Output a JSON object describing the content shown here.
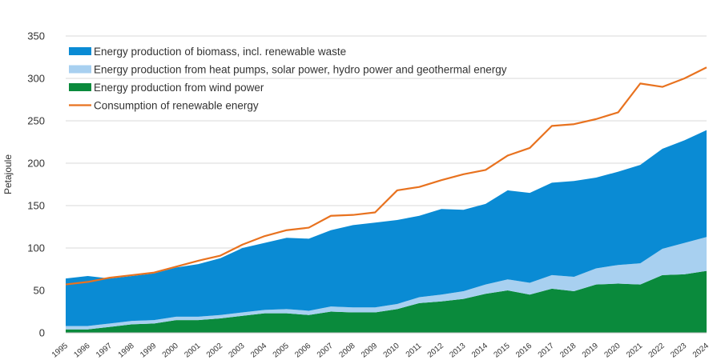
{
  "chart_data": {
    "type": "area",
    "ylabel": "Petajoule",
    "xlabel": "",
    "ylim": [
      0,
      350
    ],
    "yticks": [
      "0",
      "50",
      "100",
      "150",
      "200",
      "250",
      "300",
      "350"
    ],
    "categories": [
      "1995",
      "1996",
      "1997",
      "1998",
      "1999",
      "2000",
      "2001",
      "2002",
      "2003",
      "2004",
      "2005",
      "2006",
      "2007",
      "2008",
      "2009",
      "2010",
      "2011",
      "2012",
      "2013",
      "2014",
      "2015",
      "2016",
      "2017",
      "2018",
      "2019",
      "2020",
      "2021",
      "2022",
      "2023",
      "2024"
    ],
    "grid": "horizontal",
    "legend": "top-left",
    "stacked_series": [
      {
        "name": "Energy production from wind power",
        "color": "#0a8a3c",
        "values": [
          4,
          4,
          7,
          10,
          11,
          15,
          15,
          17,
          20,
          23,
          23,
          21,
          25,
          24,
          24,
          28,
          35,
          37,
          40,
          46,
          50,
          45,
          52,
          49,
          57,
          58,
          57,
          68,
          69,
          73
        ]
      },
      {
        "name": "Energy production from heat pumps, solar power, hydro power and geothermal energy",
        "color": "#a8d0f0",
        "values": [
          4,
          4,
          4,
          4,
          4,
          4,
          4,
          4,
          4,
          4,
          5,
          5,
          6,
          6,
          6,
          6,
          7,
          8,
          9,
          11,
          13,
          14,
          16,
          17,
          19,
          22,
          25,
          31,
          37,
          40
        ]
      },
      {
        "name": "Energy production of biomass, incl. renewable waste",
        "color": "#0a8bd4",
        "values": [
          56,
          59,
          53,
          53,
          55,
          58,
          62,
          67,
          76,
          79,
          84,
          85,
          90,
          97,
          100,
          99,
          96,
          101,
          96,
          95,
          105,
          106,
          109,
          113,
          107,
          110,
          116,
          118,
          121,
          126
        ]
      }
    ],
    "line_series": [
      {
        "name": "Consumption of renewable energy",
        "color": "#e8721f",
        "values": [
          57,
          60,
          65,
          68,
          71,
          78,
          85,
          91,
          104,
          114,
          121,
          124,
          138,
          139,
          142,
          168,
          172,
          180,
          187,
          192,
          209,
          218,
          244,
          246,
          252,
          260,
          294,
          290,
          300,
          313
        ]
      }
    ],
    "legend_order": [
      "Energy production of biomass, incl. renewable waste",
      "Energy production from heat pumps, solar power, hydro power and geothermal energy",
      "Energy production from wind power",
      "Consumption of renewable energy"
    ]
  }
}
